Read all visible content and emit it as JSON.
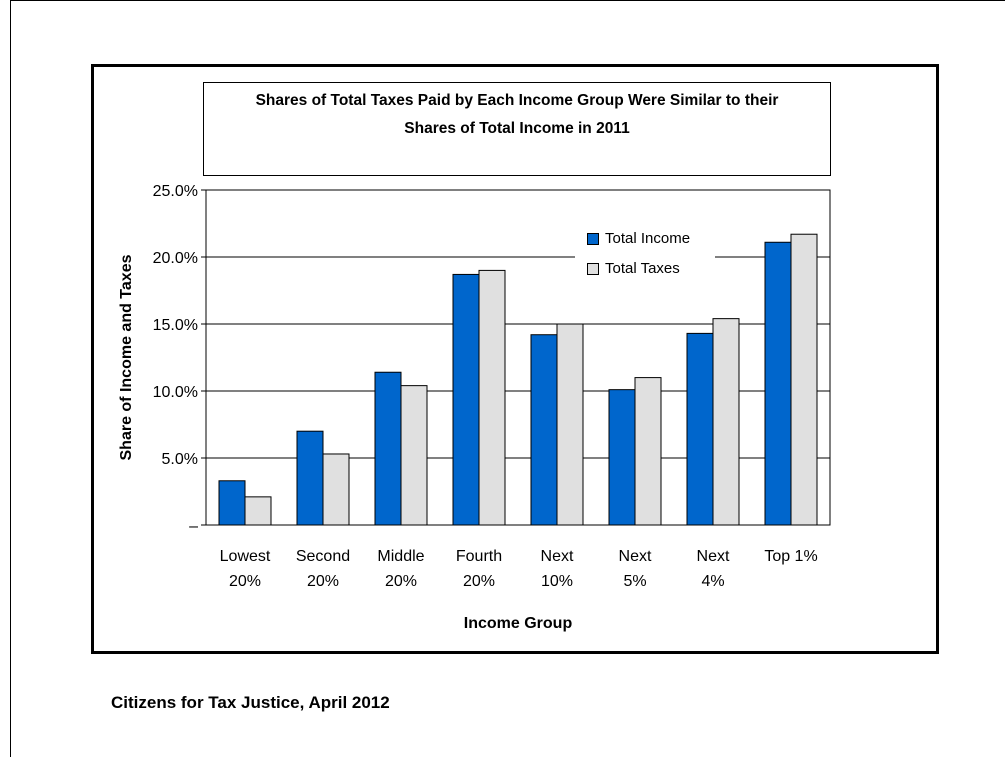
{
  "source": "Citizens for Tax Justice, April 2012",
  "chart_data": {
    "type": "bar",
    "title": "Shares of Total Taxes Paid by Each Income Group Were Similar to their Shares of Total Income in 2011",
    "title_lines": [
      "Shares of Total Taxes Paid by Each Income Group Were Similar to their",
      "Shares of Total Income in 2011"
    ],
    "xlabel": "Income Group",
    "ylabel": "Share of Income and Taxes",
    "ylim": [
      0,
      25
    ],
    "yticks": [
      {
        "value": 0,
        "label": "–"
      },
      {
        "value": 5,
        "label": "5.0%"
      },
      {
        "value": 10,
        "label": "10.0%"
      },
      {
        "value": 15,
        "label": "15.0%"
      },
      {
        "value": 20,
        "label": "20.0%"
      },
      {
        "value": 25,
        "label": "25.0%"
      }
    ],
    "grid": true,
    "legend_position": "top-right",
    "categories": [
      [
        "Lowest",
        "20%"
      ],
      [
        "Second",
        "20%"
      ],
      [
        "Middle",
        "20%"
      ],
      [
        "Fourth",
        "20%"
      ],
      [
        "Next",
        "10%"
      ],
      [
        "Next",
        "5%"
      ],
      [
        "Next",
        "4%"
      ],
      [
        "Top 1%"
      ]
    ],
    "series": [
      {
        "name": "Total Income",
        "color": "#0066cc",
        "values": [
          3.3,
          7.0,
          11.4,
          18.7,
          14.2,
          10.1,
          14.3,
          21.1
        ]
      },
      {
        "name": "Total Taxes",
        "color": "#e0e0e0",
        "values": [
          2.1,
          5.3,
          10.4,
          19.0,
          15.0,
          11.0,
          15.4,
          21.7
        ]
      }
    ]
  }
}
